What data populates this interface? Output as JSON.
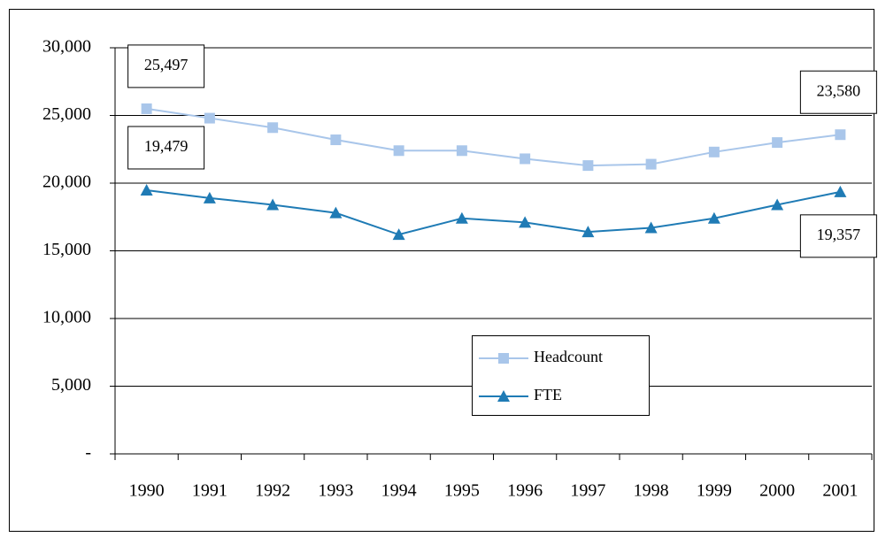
{
  "chart_data": {
    "type": "line",
    "categories": [
      "1990",
      "1991",
      "1992",
      "1993",
      "1994",
      "1995",
      "1996",
      "1997",
      "1998",
      "1999",
      "2000",
      "2001"
    ],
    "series": [
      {
        "name": "Headcount",
        "color": "#a9c6ea",
        "marker": "square",
        "values": [
          25497,
          24800,
          24100,
          23200,
          22400,
          22400,
          21800,
          21300,
          21400,
          22300,
          23000,
          23580
        ],
        "value_labels": [
          "25,497",
          null,
          null,
          null,
          null,
          null,
          null,
          null,
          null,
          null,
          null,
          "23,580"
        ]
      },
      {
        "name": "FTE",
        "color": "#1f7bb5",
        "marker": "triangle",
        "values": [
          19479,
          18900,
          18400,
          17800,
          16200,
          17400,
          17100,
          16400,
          16700,
          17400,
          18400,
          19357
        ],
        "value_labels": [
          "19,479",
          null,
          null,
          null,
          null,
          null,
          null,
          null,
          null,
          null,
          null,
          "19,357"
        ]
      }
    ],
    "ylim": [
      0,
      30000
    ],
    "yticks": [
      {
        "value": 0,
        "label": "-"
      },
      {
        "value": 5000,
        "label": "5,000"
      },
      {
        "value": 10000,
        "label": "10,000"
      },
      {
        "value": 15000,
        "label": "15,000"
      },
      {
        "value": 20000,
        "label": "20,000"
      },
      {
        "value": 25000,
        "label": "25,000"
      },
      {
        "value": 30000,
        "label": "30,000"
      }
    ],
    "grid": true
  }
}
